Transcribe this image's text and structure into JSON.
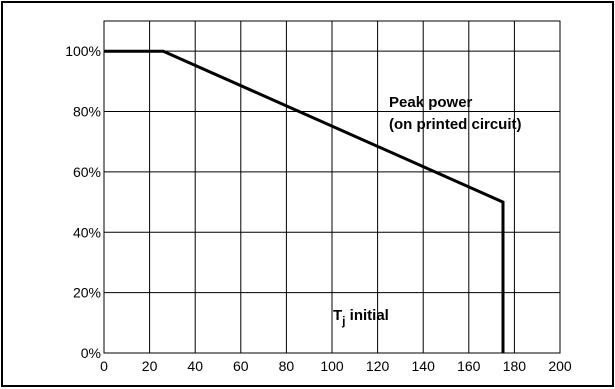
{
  "chart_data": {
    "type": "line",
    "x": [
      0,
      26,
      175,
      175
    ],
    "series": [
      {
        "values": [
          100,
          100,
          50,
          0
        ]
      }
    ],
    "xlim": [
      0,
      200
    ],
    "ylim": [
      0,
      110
    ],
    "x_ticks": [
      0,
      20,
      40,
      60,
      80,
      100,
      120,
      140,
      160,
      180,
      200
    ],
    "x_tick_labels": [
      "0",
      "20",
      "40",
      "60",
      "80",
      "100",
      "120",
      "140",
      "160",
      "180",
      "200"
    ],
    "y_ticks": [
      0,
      20,
      40,
      60,
      80,
      100
    ],
    "y_tick_labels": [
      "0%",
      "20%",
      "40%",
      "60%",
      "80%",
      "100%"
    ],
    "grid": true,
    "annotations": [
      {
        "text_line1": "Peak power",
        "text_line2": "(on printed circuit)"
      },
      {
        "text_main": "T",
        "text_sub": "j",
        "text_rest": " initial"
      }
    ],
    "colors": {
      "line": "#000000",
      "grid": "#000000",
      "background": "#ffffff",
      "frame": "#000000"
    }
  }
}
